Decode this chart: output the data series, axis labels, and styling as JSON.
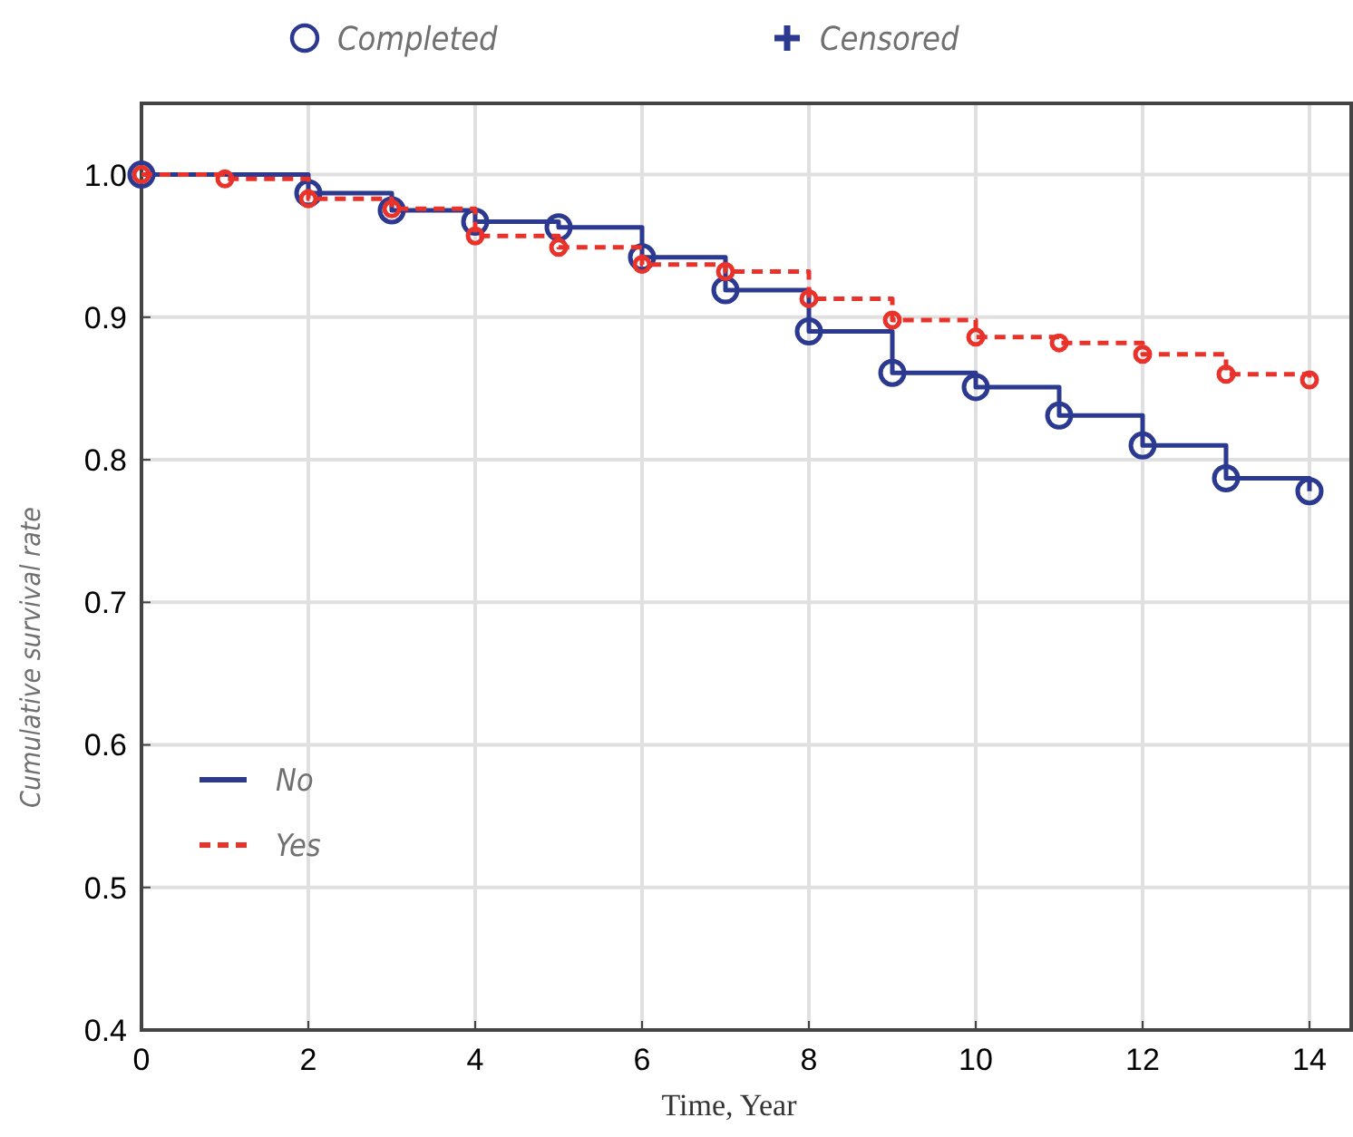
{
  "chart_data": {
    "type": "step",
    "xlabel": "Time, Year",
    "ylabel": "Cumulative survival rate",
    "annotations": [
      "Completed",
      "Censored"
    ],
    "xlim": [
      0,
      14.5
    ],
    "xticks": [
      0,
      2,
      4,
      6,
      8,
      10,
      12,
      14
    ],
    "ylim": [
      0.4,
      1.05
    ],
    "yticks": [
      {
        "value": 0.4,
        "label": "0.4"
      },
      {
        "value": 0.5,
        "label": "0.5"
      },
      {
        "value": 0.6,
        "label": "0.6"
      },
      {
        "value": 0.7,
        "label": "0.7"
      },
      {
        "value": 0.8,
        "label": "0.8"
      },
      {
        "value": 0.9,
        "label": "0.9"
      },
      {
        "value": 1,
        "label": "1.0"
      }
    ],
    "grid": true,
    "legend": "left",
    "marker": "circle",
    "series": [
      {
        "name": "No",
        "color": "#2b3990",
        "line_style": "solid",
        "x": [
          0,
          2,
          3,
          4,
          5,
          6,
          7,
          8,
          9,
          10,
          11,
          12,
          13,
          14
        ],
        "values": [
          1.0,
          0.987,
          0.975,
          0.967,
          0.963,
          0.942,
          0.919,
          0.89,
          0.861,
          0.851,
          0.831,
          0.81,
          0.787,
          0.778
        ]
      },
      {
        "name": "Yes",
        "color": "#e8322a",
        "line_style": "dashed",
        "x": [
          0,
          1,
          2,
          3,
          4,
          5,
          6,
          7,
          8,
          9,
          10,
          11,
          12,
          13,
          14
        ],
        "values": [
          1.0,
          0.997,
          0.983,
          0.976,
          0.957,
          0.949,
          0.937,
          0.932,
          0.913,
          0.898,
          0.886,
          0.882,
          0.874,
          0.86,
          0.856
        ]
      }
    ]
  }
}
